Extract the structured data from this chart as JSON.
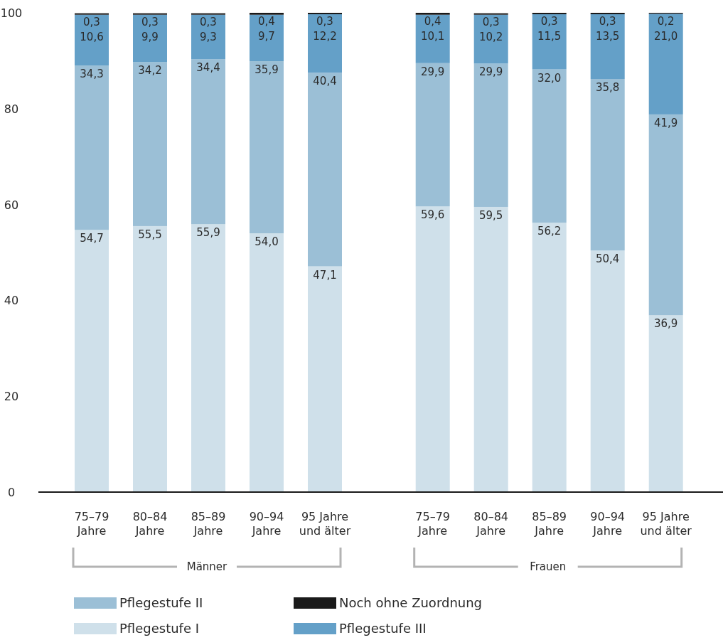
{
  "chart_data": {
    "type": "bar",
    "stacked": true,
    "categories": [
      "75–79 Jahre",
      "80–84 Jahre",
      "85–89 Jahre",
      "90–94 Jahre",
      "95 Jahre und älter",
      "75–79 Jahre",
      "80–84 Jahre",
      "85–89 Jahre",
      "90–94 Jahre",
      "95 Jahre und älter"
    ],
    "series": [
      {
        "name": "Pflegestufe I",
        "color": "#cfe0ea",
        "values": [
          54.7,
          55.5,
          55.9,
          54.0,
          47.1,
          59.6,
          59.5,
          56.2,
          50.4,
          36.9
        ],
        "value_labels": [
          "54,7",
          "55,5",
          "55,9",
          "54,0",
          "47,1",
          "59,6",
          "59,5",
          "56,2",
          "50,4",
          "36,9"
        ]
      },
      {
        "name": "Pflegestufe II",
        "color": "#9bbfd6",
        "values": [
          34.3,
          34.2,
          34.4,
          35.9,
          40.4,
          29.9,
          29.9,
          32.0,
          35.8,
          41.9
        ],
        "value_labels": [
          "34,3",
          "34,2",
          "34,4",
          "35,9",
          "40,4",
          "29,9",
          "29,9",
          "32,0",
          "35,8",
          "41,9"
        ]
      },
      {
        "name": "Pflegestufe III",
        "color": "#64a0c8",
        "values": [
          10.6,
          9.9,
          9.3,
          9.7,
          12.2,
          10.1,
          10.2,
          11.5,
          13.5,
          21.0
        ],
        "value_labels": [
          "10,6",
          "9,9",
          "9,3",
          "9,7",
          "12,2",
          "10,1",
          "10,2",
          "11,5",
          "13,5",
          "21,0"
        ]
      },
      {
        "name": "Noch ohne Zuordnung",
        "color": "#1a1a1a",
        "values": [
          0.3,
          0.3,
          0.3,
          0.4,
          0.3,
          0.4,
          0.3,
          0.3,
          0.3,
          0.2
        ],
        "value_labels": [
          "0,3",
          "0,3",
          "0,3",
          "0,4",
          "0,3",
          "0,4",
          "0,3",
          "0,3",
          "0,3",
          "0,2"
        ]
      }
    ],
    "ylim": [
      0,
      100
    ],
    "yticks": [
      0,
      20,
      40,
      60,
      80,
      100
    ],
    "grid": false,
    "legend": "bottom",
    "annotations": [
      "Männer",
      "Frauen"
    ]
  }
}
